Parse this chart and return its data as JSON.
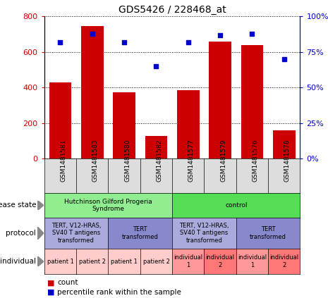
{
  "title": "GDS5426 / 228468_at",
  "samples": [
    "GSM1481581",
    "GSM1481583",
    "GSM1481580",
    "GSM1481582",
    "GSM1481577",
    "GSM1481579",
    "GSM1481576",
    "GSM1481578"
  ],
  "counts": [
    430,
    745,
    375,
    130,
    385,
    660,
    640,
    160
  ],
  "percentiles": [
    82,
    88,
    82,
    65,
    82,
    87,
    88,
    70
  ],
  "ylim_left": [
    0,
    800
  ],
  "ylim_right": [
    0,
    100
  ],
  "yticks_left": [
    0,
    200,
    400,
    600,
    800
  ],
  "yticks_right": [
    0,
    25,
    50,
    75,
    100
  ],
  "bar_color": "#CC0000",
  "dot_color": "#0000CC",
  "tick_label_color_left": "#CC0000",
  "tick_label_color_right": "#0000CC",
  "disease_state_row": [
    {
      "label": "Hutchinson Gilford Progeria\nSyndrome",
      "start": 0,
      "end": 4,
      "color": "#90EE90"
    },
    {
      "label": "control",
      "start": 4,
      "end": 8,
      "color": "#55DD55"
    }
  ],
  "protocol_row": [
    {
      "label": "TERT, V12-HRAS,\nSV40 T antigens\ntransformed",
      "start": 0,
      "end": 2,
      "color": "#AAAADD"
    },
    {
      "label": "TERT\ntransformed",
      "start": 2,
      "end": 4,
      "color": "#8888CC"
    },
    {
      "label": "TERT, V12-HRAS,\nSV40 T antigens\ntransformed",
      "start": 4,
      "end": 6,
      "color": "#AAAADD"
    },
    {
      "label": "TERT\ntransformed",
      "start": 6,
      "end": 8,
      "color": "#8888CC"
    }
  ],
  "individual_row": [
    {
      "label": "patient 1",
      "start": 0,
      "end": 1,
      "color": "#FFCCCC"
    },
    {
      "label": "patient 2",
      "start": 1,
      "end": 2,
      "color": "#FFCCCC"
    },
    {
      "label": "patient 1",
      "start": 2,
      "end": 3,
      "color": "#FFCCCC"
    },
    {
      "label": "patient 2",
      "start": 3,
      "end": 4,
      "color": "#FFCCCC"
    },
    {
      "label": "individual\n1",
      "start": 4,
      "end": 5,
      "color": "#FF9999"
    },
    {
      "label": "individual\n2",
      "start": 5,
      "end": 6,
      "color": "#FF7777"
    },
    {
      "label": "individual\n1",
      "start": 6,
      "end": 7,
      "color": "#FF9999"
    },
    {
      "label": "individual\n2",
      "start": 7,
      "end": 8,
      "color": "#FF7777"
    }
  ],
  "row_labels": [
    "disease state",
    "protocol",
    "individual"
  ],
  "legend_bar_label": "count",
  "legend_dot_label": "percentile rank within the sample",
  "bg_color": "#FFFFFF",
  "xticklabel_bg": "#DDDDDD"
}
